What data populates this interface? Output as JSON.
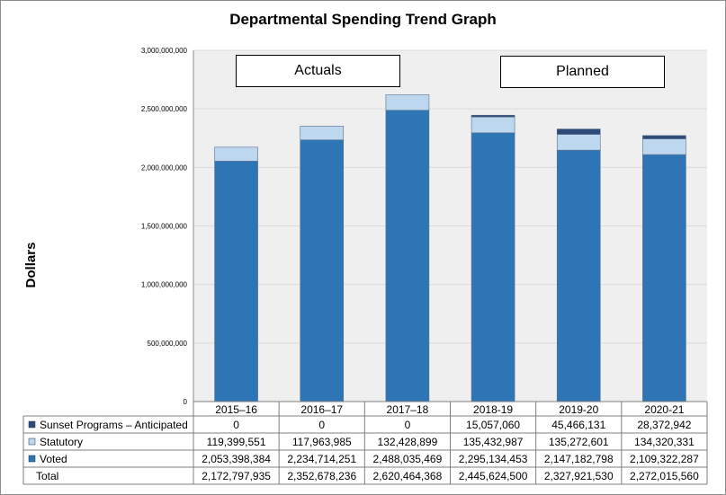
{
  "title": "Departmental Spending Trend Graph",
  "ylabel": "Dollars",
  "region_labels": {
    "actuals": "Actuals",
    "planned": "Planned"
  },
  "colors": {
    "sunset": "#2e4a7a",
    "statutory": "#bcd7ee",
    "voted": "#2e75b6",
    "plot_bg": "#efefef",
    "grid": "#d9d9d9"
  },
  "chart_data": {
    "type": "bar",
    "stacked": true,
    "title": "Departmental Spending Trend Graph",
    "ylabel": "Dollars",
    "ylim": [
      0,
      3000000000
    ],
    "yticks": [
      0,
      500000000,
      1000000000,
      1500000000,
      2000000000,
      2500000000,
      3000000000
    ],
    "ytick_labels": [
      "0",
      "500,000,000",
      "1,000,000,000",
      "1,500,000,000",
      "2,000,000,000",
      "2,500,000,000",
      "3,000,000,000"
    ],
    "grid": true,
    "categories": [
      "2015–16",
      "2016–17",
      "2017–18",
      "2018-19",
      "2019-20",
      "2020-21"
    ],
    "series": [
      {
        "name": "Sunset Programs – Anticipated",
        "values": [
          0,
          0,
          0,
          15057060,
          45466131,
          28372942
        ],
        "labels": [
          "0",
          "0",
          "0",
          "15,057,060",
          "45,466,131",
          "28,372,942"
        ]
      },
      {
        "name": "Statutory",
        "values": [
          119399551,
          117963985,
          132428899,
          135432987,
          135272601,
          134320331
        ],
        "labels": [
          "119,399,551",
          "117,963,985",
          "132,428,899",
          "135,432,987",
          "135,272,601",
          "134,320,331"
        ]
      },
      {
        "name": "Voted",
        "values": [
          2053398384,
          2234714251,
          2488035469,
          2295134453,
          2147182798,
          2109322287
        ],
        "labels": [
          "2,053,398,384",
          "2,234,714,251",
          "2,488,035,469",
          "2,295,134,453",
          "2,147,182,798",
          "2,109,322,287"
        ]
      }
    ],
    "total": {
      "name": "Total",
      "labels": [
        "2,172,797,935",
        "2,352,678,236",
        "2,620,464,368",
        "2,445,624,500",
        "2,327,921,530",
        "2,272,015,560"
      ]
    }
  }
}
